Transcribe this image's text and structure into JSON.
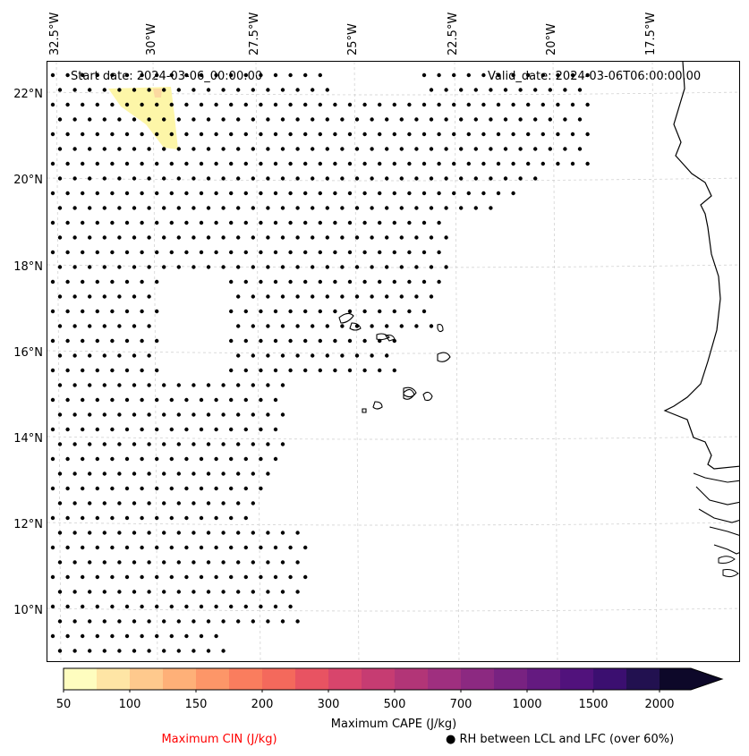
{
  "header": {
    "start_date": "Start date: 2024-03-06_00:00:00",
    "valid_date": "Valid_date: 2024-03-06T06:00:00.00"
  },
  "axes": {
    "longitude_labels": [
      "32.5°W",
      "30°W",
      "27.5°W",
      "25°W",
      "22.5°W",
      "20°W",
      "17.5°W"
    ],
    "latitude_labels": [
      "22°N",
      "20°N",
      "18°N",
      "16°N",
      "14°N",
      "12°N",
      "10°N"
    ],
    "lon_range": [
      -33,
      -16
    ],
    "lat_range": [
      9,
      22.7
    ],
    "gridlines": true
  },
  "colorbar": {
    "label": "Maximum CAPE (J/kg)",
    "tick_labels": [
      "50",
      "100",
      "150",
      "200",
      "300",
      "500",
      "700",
      "1000",
      "1500",
      "2000"
    ],
    "colors": [
      "#fefdbf",
      "#fee5a5",
      "#fec98d",
      "#feb078",
      "#fd9668",
      "#fa7d5e",
      "#f4695c",
      "#e85362",
      "#d8456c",
      "#c63c72",
      "#b23577",
      "#9f2f7f",
      "#8c2981",
      "#782281",
      "#641a80",
      "#51127c",
      "#3b0f70",
      "#221150",
      "#0d0829"
    ],
    "extend": "max"
  },
  "legend": {
    "cin_label": "Maximum CIN (J/kg)",
    "cin_color": "#ff0000",
    "rh_label": "RH between LCL and LFC (over 60%)",
    "rh_marker": "●"
  },
  "map_data": {
    "cape_area_color": "#fdf6a8",
    "cape_peak_color": "#fcd9a0",
    "coastline_color": "#000000",
    "dot_color": "#000000"
  }
}
